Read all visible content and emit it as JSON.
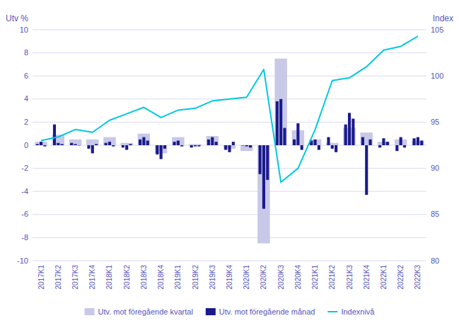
{
  "chart_data": {
    "type": "bar",
    "ylabel": "Utv %",
    "y2label": "Index",
    "categories": [
      "2017K1",
      "2017K2",
      "2017K3",
      "2017K4",
      "2018K1",
      "2018K2",
      "2018K3",
      "2018K4",
      "2019K1",
      "2019K2",
      "2019K3",
      "2019K4",
      "2020K1",
      "2020K2",
      "2020K3",
      "2020K4",
      "2021K1",
      "2021K2",
      "2021K3",
      "2021K4",
      "2022K1",
      "2022K2",
      "2022K3"
    ],
    "series": [
      {
        "name": "Utv. mot föregående kvartal",
        "type": "bar",
        "color": "#c8c8e8",
        "values": [
          0.3,
          0.9,
          0.5,
          0.5,
          0.7,
          0.2,
          1.0,
          -0.7,
          0.7,
          0.1,
          0.8,
          -0.3,
          -0.5,
          -8.5,
          7.5,
          1.3,
          0.5,
          0.2,
          1.5,
          1.1,
          0.3,
          0.5,
          0.4
        ]
      },
      {
        "name": "Utv. mot föregående månad",
        "type": "bar",
        "color": "#1a1a8c",
        "values": [
          [
            0.1,
            0.3,
            -0.1
          ],
          [
            1.8,
            0.2,
            0.1
          ],
          [
            0.2,
            0.1,
            0.0
          ],
          [
            -0.3,
            -0.7,
            0.1
          ],
          [
            0.2,
            0.3,
            -0.1
          ],
          [
            -0.2,
            -0.4,
            0.1
          ],
          [
            0.5,
            0.7,
            0.4
          ],
          [
            -0.8,
            -1.2,
            -0.3
          ],
          [
            0.3,
            0.4,
            -0.1
          ],
          [
            -0.2,
            -0.1,
            -0.1
          ],
          [
            0.5,
            0.7,
            0.3
          ],
          [
            -0.4,
            -0.6,
            0.3
          ],
          [
            0.0,
            -0.1,
            -0.2
          ],
          [
            -2.5,
            -5.5,
            -3.0
          ],
          [
            3.8,
            4.0,
            1.5
          ],
          [
            0.5,
            1.9,
            -0.4
          ],
          [
            0.4,
            0.5,
            -0.4
          ],
          [
            0.7,
            -0.3,
            -0.6
          ],
          [
            1.8,
            2.8,
            2.3
          ],
          [
            0.7,
            -4.3,
            0.5
          ],
          [
            -0.2,
            0.6,
            0.3
          ],
          [
            -0.5,
            0.7,
            -0.2
          ],
          [
            0.6,
            0.7,
            0.4
          ]
        ]
      },
      {
        "name": "Indexnivå",
        "type": "line",
        "axis": "y2",
        "color": "#00c8e0",
        "values": [
          93.0,
          93.4,
          94.2,
          93.9,
          95.2,
          95.9,
          96.6,
          95.5,
          96.3,
          96.5,
          97.3,
          97.5,
          97.7,
          100.7,
          88.5,
          90.0,
          94.2,
          99.5,
          99.8,
          101.0,
          102.8,
          103.2,
          104.3
        ]
      }
    ],
    "ylim": [
      -10,
      10
    ],
    "yticks": [
      -10,
      -8,
      -6,
      -4,
      -2,
      0,
      2,
      4,
      6,
      8,
      10
    ],
    "y2lim": [
      80,
      105
    ],
    "y2ticks": [
      80,
      85,
      90,
      95,
      100,
      105
    ],
    "grid": true,
    "legend": "bottom"
  }
}
